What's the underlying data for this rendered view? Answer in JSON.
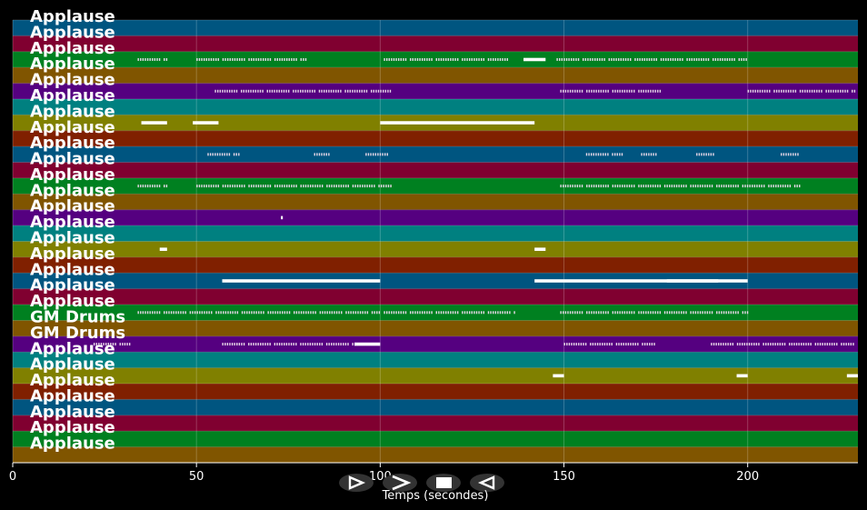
{
  "chart_data": {
    "type": "piano-roll",
    "xlabel": "Temps (secondes)",
    "xlim": [
      0,
      230
    ],
    "xticks": [
      0,
      50,
      100,
      150,
      200
    ],
    "grid": true,
    "track_colors": [
      "#005580",
      "#800030",
      "#008020",
      "#805500",
      "#550080",
      "#008080",
      "#808000",
      "#802000"
    ],
    "tracks": [
      {
        "label": "Applause",
        "notes": []
      },
      {
        "label": "Applause",
        "notes": []
      },
      {
        "label": "Applause",
        "dense": [
          [
            34,
            42
          ],
          [
            50,
            80
          ],
          [
            101,
            135
          ],
          [
            148,
            200
          ]
        ],
        "notes": [
          [
            139,
            145
          ]
        ]
      },
      {
        "label": "Applause",
        "notes": []
      },
      {
        "label": "Applause",
        "dense": [
          [
            55,
            103
          ],
          [
            149,
            177
          ],
          [
            200,
            229
          ]
        ],
        "notes": []
      },
      {
        "label": "Applause",
        "notes": []
      },
      {
        "label": "Applause",
        "notes": [
          [
            35,
            42
          ],
          [
            49,
            56
          ],
          [
            100,
            142
          ]
        ]
      },
      {
        "label": "Applause",
        "notes": []
      },
      {
        "label": "Applause",
        "dense": [
          [
            53,
            62
          ],
          [
            82,
            86
          ],
          [
            96,
            103
          ],
          [
            156,
            166
          ],
          [
            171,
            175
          ],
          [
            186,
            191
          ],
          [
            209,
            214
          ]
        ],
        "notes": []
      },
      {
        "label": "Applause",
        "notes": []
      },
      {
        "label": "Applause",
        "dense": [
          [
            34,
            42
          ],
          [
            50,
            103
          ],
          [
            149,
            214
          ]
        ],
        "notes": []
      },
      {
        "label": "Applause",
        "notes": []
      },
      {
        "label": "Applause",
        "notes": [
          [
            73,
            73.5
          ]
        ]
      },
      {
        "label": "Applause",
        "notes": []
      },
      {
        "label": "Applause",
        "notes": [
          [
            40,
            42
          ],
          [
            142,
            145
          ]
        ]
      },
      {
        "label": "Applause",
        "notes": []
      },
      {
        "label": "Applause",
        "notes": [
          [
            57,
            100
          ],
          [
            142,
            150
          ],
          [
            150,
            192
          ],
          [
            178,
            200
          ]
        ]
      },
      {
        "label": "Applause",
        "notes": []
      },
      {
        "label": "Applause",
        "dense": [
          [
            34,
            100
          ],
          [
            101,
            137
          ],
          [
            149,
            200
          ]
        ],
        "notes": []
      },
      {
        "label": "GM Drums",
        "notes": []
      },
      {
        "label": "GM Drums",
        "dense": [
          [
            22,
            32
          ],
          [
            57,
            100
          ],
          [
            150,
            175
          ],
          [
            190,
            229
          ]
        ],
        "notes": [
          [
            93,
            100
          ]
        ]
      },
      {
        "label": "Applause",
        "notes": []
      },
      {
        "label": "Applause",
        "notes": [
          [
            147,
            150
          ],
          [
            197,
            200
          ],
          [
            227,
            230
          ]
        ]
      },
      {
        "label": "Applause",
        "notes": []
      },
      {
        "label": "Applause",
        "notes": []
      },
      {
        "label": "Applause",
        "notes": []
      },
      {
        "label": "Applause",
        "notes": []
      },
      {
        "label": "Applause",
        "notes": []
      }
    ]
  },
  "controls": {
    "play_icon": "play-icon",
    "forward_icon": "forward-icon",
    "stop_icon": "stop-icon",
    "rewind_icon": "rewind-icon"
  }
}
